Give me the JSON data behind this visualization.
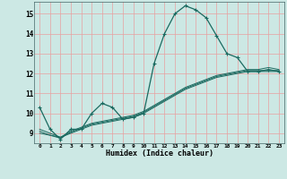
{
  "title": "",
  "xlabel": "Humidex (Indice chaleur)",
  "ylabel": "",
  "background_color": "#cce8e4",
  "plot_bg_color": "#cce8e4",
  "grid_color": "#e8a0a0",
  "line_color": "#1a6a60",
  "xlim": [
    -0.5,
    23.5
  ],
  "ylim": [
    8.5,
    15.6
  ],
  "xticks": [
    0,
    1,
    2,
    3,
    4,
    5,
    6,
    7,
    8,
    9,
    10,
    11,
    12,
    13,
    14,
    15,
    16,
    17,
    18,
    19,
    20,
    21,
    22,
    23
  ],
  "yticks": [
    9,
    10,
    11,
    12,
    13,
    14,
    15
  ],
  "series": {
    "curve1": {
      "x": [
        0,
        1,
        2,
        3,
        4,
        5,
        6,
        7,
        8,
        9,
        10,
        11,
        12,
        13,
        14,
        15,
        16,
        17,
        18,
        19,
        20,
        21,
        22,
        23
      ],
      "y": [
        10.3,
        9.2,
        8.7,
        9.2,
        9.2,
        10.0,
        10.5,
        10.3,
        9.7,
        9.8,
        10.0,
        12.5,
        14.0,
        15.0,
        15.4,
        15.2,
        14.8,
        13.9,
        13.0,
        12.8,
        12.1,
        12.1,
        12.2,
        12.1
      ]
    },
    "curve2": {
      "x": [
        0,
        1,
        2,
        3,
        4,
        5,
        6,
        7,
        8,
        9,
        10,
        11,
        12,
        13,
        14,
        15,
        16,
        17,
        18,
        19,
        20,
        21,
        22,
        23
      ],
      "y": [
        9.2,
        9.0,
        8.8,
        9.1,
        9.3,
        9.5,
        9.6,
        9.7,
        9.8,
        9.9,
        10.1,
        10.4,
        10.7,
        11.0,
        11.3,
        11.5,
        11.7,
        11.9,
        12.0,
        12.1,
        12.2,
        12.2,
        12.3,
        12.2
      ]
    },
    "curve3": {
      "x": [
        0,
        1,
        2,
        3,
        4,
        5,
        6,
        7,
        8,
        9,
        10,
        11,
        12,
        13,
        14,
        15,
        16,
        17,
        18,
        19,
        20,
        21,
        22,
        23
      ],
      "y": [
        9.0,
        8.9,
        8.8,
        9.0,
        9.2,
        9.4,
        9.5,
        9.6,
        9.7,
        9.8,
        10.0,
        10.3,
        10.6,
        10.9,
        11.2,
        11.4,
        11.6,
        11.8,
        11.9,
        12.0,
        12.1,
        12.1,
        12.1,
        12.1
      ]
    },
    "curve4": {
      "x": [
        0,
        1,
        2,
        3,
        4,
        5,
        6,
        7,
        8,
        9,
        10,
        11,
        12,
        13,
        14,
        15,
        16,
        17,
        18,
        19,
        20,
        21,
        22,
        23
      ],
      "y": [
        9.1,
        8.9,
        8.75,
        9.05,
        9.25,
        9.45,
        9.55,
        9.65,
        9.75,
        9.85,
        10.05,
        10.35,
        10.65,
        10.95,
        11.25,
        11.45,
        11.65,
        11.85,
        11.95,
        12.05,
        12.15,
        12.15,
        12.15,
        12.15
      ]
    }
  }
}
